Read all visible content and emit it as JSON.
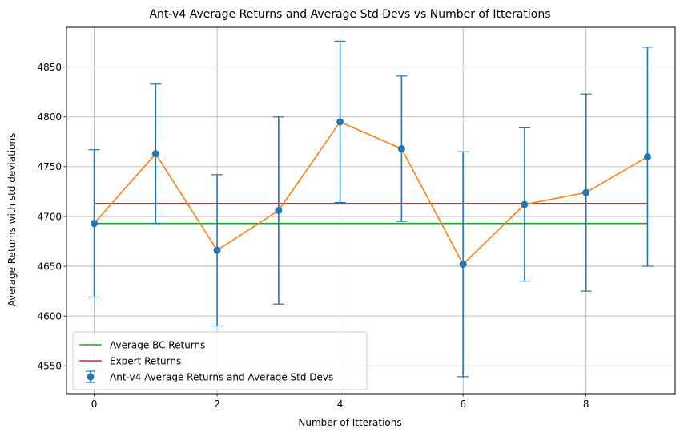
{
  "chart_data": {
    "type": "line",
    "title": "Ant-v4 Average Returns and Average Std Devs vs Number of Itterations",
    "xlabel": "Number of Itterations",
    "ylabel": "Average Returns with std deviations",
    "xlim": [
      -0.45,
      9.45
    ],
    "ylim": [
      4522,
      4890
    ],
    "x_ticks": [
      0,
      2,
      4,
      6,
      8
    ],
    "y_ticks": [
      4550,
      4600,
      4650,
      4700,
      4750,
      4800,
      4850
    ],
    "grid": true,
    "legend_position": "lower-left",
    "x": [
      0,
      1,
      2,
      3,
      4,
      5,
      6,
      7,
      8,
      9
    ],
    "series": [
      {
        "name": "Ant-v4 Average Returns and Average Std Devs",
        "kind": "errorbar",
        "color": "#1f77b4",
        "values": [
          4693,
          4763,
          4666,
          4706,
          4795,
          4768,
          4652,
          4712,
          4724,
          4760
        ],
        "errors": [
          74,
          70,
          76,
          94,
          81,
          73,
          113,
          77,
          99,
          110
        ]
      },
      {
        "name": "",
        "kind": "line",
        "color": "#ff7f0e",
        "values": [
          4693,
          4763,
          4666,
          4706,
          4795,
          4768,
          4652,
          4712,
          4724,
          4760
        ]
      },
      {
        "name": "Average BC Returns",
        "kind": "hline",
        "color": "#2ca02c",
        "y": 4693,
        "x_range": [
          0,
          9
        ]
      },
      {
        "name": "Expert Returns",
        "kind": "hline",
        "color": "#d62728",
        "y": 4713,
        "x_range": [
          0,
          9
        ]
      }
    ]
  }
}
